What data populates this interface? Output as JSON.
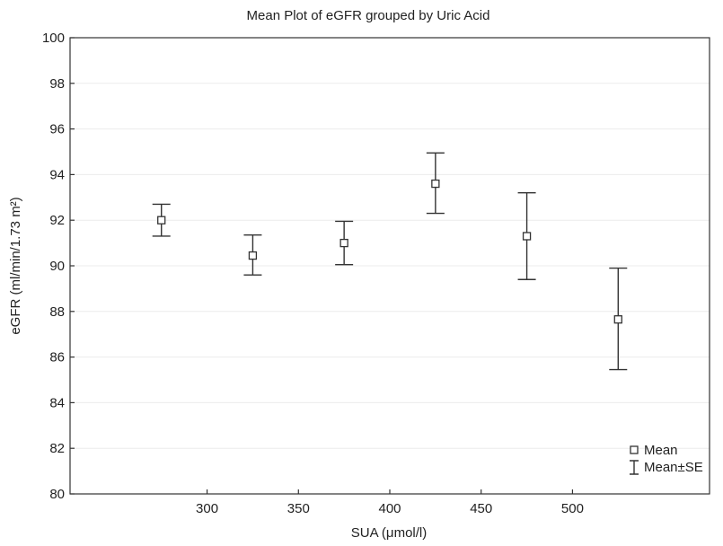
{
  "chart_data": {
    "type": "scatter",
    "title": "Mean Plot of eGFR grouped by Uric Acid",
    "xlabel": "SUA (μmol/l)",
    "ylabel": "eGFR (ml/min/1.73 m²)",
    "xlim": [
      225,
      575
    ],
    "ylim": [
      80,
      100
    ],
    "x_ticks": [
      300,
      350,
      400,
      450,
      500
    ],
    "y_ticks": [
      80,
      82,
      84,
      86,
      88,
      90,
      92,
      94,
      96,
      98,
      100
    ],
    "grid": true,
    "legend_position": "bottom-right",
    "x": [
      275,
      325,
      375,
      425,
      475,
      525
    ],
    "mean": [
      92.0,
      90.45,
      91.0,
      93.6,
      91.3,
      87.65
    ],
    "se_low": [
      91.3,
      89.6,
      90.05,
      92.3,
      89.4,
      85.45
    ],
    "se_high": [
      92.7,
      91.35,
      91.95,
      94.95,
      93.2,
      89.9
    ],
    "legend": {
      "mean_label": "Mean",
      "se_label": "Mean±SE"
    }
  }
}
